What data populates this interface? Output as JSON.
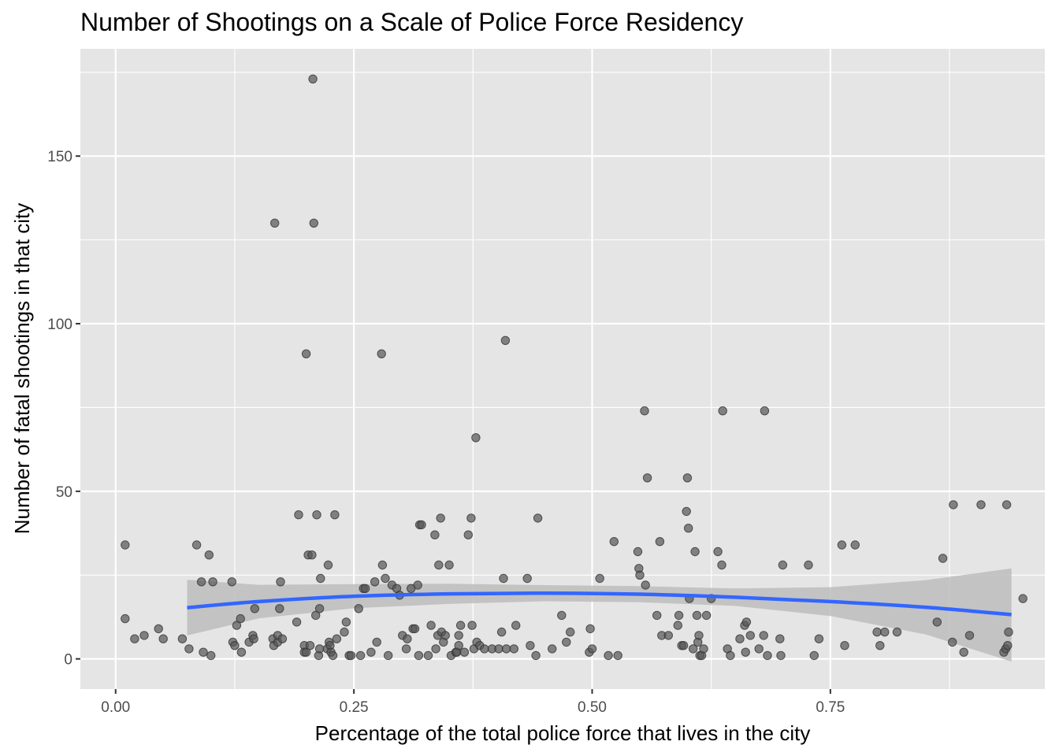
{
  "chart_data": {
    "type": "scatter",
    "title": "Number of Shootings on a Scale of Police Force Residency",
    "xlabel": "Percentage of the total police force that lives in the city",
    "ylabel": "Number of fatal shootings in that city",
    "xlim": [
      -0.037,
      0.975
    ],
    "ylim": [
      -9,
      182
    ],
    "x_ticks": [
      0,
      0.25,
      0.5,
      0.75
    ],
    "x_tick_labels": [
      "0.00",
      "0.25",
      "0.50",
      "0.75"
    ],
    "y_ticks": [
      0,
      50,
      100,
      150
    ],
    "y_tick_labels": [
      "0",
      "50",
      "100",
      "150"
    ],
    "grid": true,
    "colors": {
      "panel_background": "#E5E5E5",
      "grid_line": "#FFFFFF",
      "point": "#555555",
      "smooth_line": "#3366FF",
      "confidence_band": "#BDBDBD",
      "tick_label": "#4D4D4D",
      "tick_mark": "#333333"
    },
    "points": [
      [
        0.01,
        34
      ],
      [
        0.01,
        12
      ],
      [
        0.02,
        6
      ],
      [
        0.03,
        7
      ],
      [
        0.045,
        9
      ],
      [
        0.05,
        6
      ],
      [
        0.07,
        6
      ],
      [
        0.077,
        3
      ],
      [
        0.085,
        34
      ],
      [
        0.09,
        23
      ],
      [
        0.092,
        2
      ],
      [
        0.098,
        31
      ],
      [
        0.1,
        1
      ],
      [
        0.102,
        23
      ],
      [
        0.122,
        23
      ],
      [
        0.123,
        5
      ],
      [
        0.125,
        4
      ],
      [
        0.127,
        10
      ],
      [
        0.131,
        12
      ],
      [
        0.132,
        2
      ],
      [
        0.14,
        5
      ],
      [
        0.144,
        7
      ],
      [
        0.145,
        6
      ],
      [
        0.146,
        15
      ],
      [
        0.165,
        6
      ],
      [
        0.166,
        4
      ],
      [
        0.167,
        130
      ],
      [
        0.17,
        5
      ],
      [
        0.17,
        7
      ],
      [
        0.172,
        15
      ],
      [
        0.173,
        23
      ],
      [
        0.175,
        6
      ],
      [
        0.19,
        11
      ],
      [
        0.192,
        43
      ],
      [
        0.198,
        4
      ],
      [
        0.198,
        2
      ],
      [
        0.2,
        2
      ],
      [
        0.2,
        91
      ],
      [
        0.202,
        31
      ],
      [
        0.204,
        4
      ],
      [
        0.206,
        31
      ],
      [
        0.207,
        173
      ],
      [
        0.208,
        130
      ],
      [
        0.21,
        13
      ],
      [
        0.211,
        43
      ],
      [
        0.213,
        1
      ],
      [
        0.214,
        3
      ],
      [
        0.214,
        15
      ],
      [
        0.215,
        24
      ],
      [
        0.222,
        3
      ],
      [
        0.223,
        28
      ],
      [
        0.224,
        5
      ],
      [
        0.225,
        4
      ],
      [
        0.226,
        2
      ],
      [
        0.228,
        1
      ],
      [
        0.23,
        43
      ],
      [
        0.232,
        6
      ],
      [
        0.24,
        8
      ],
      [
        0.242,
        11
      ],
      [
        0.245,
        1
      ],
      [
        0.247,
        1
      ],
      [
        0.255,
        15
      ],
      [
        0.257,
        1
      ],
      [
        0.26,
        21
      ],
      [
        0.262,
        21
      ],
      [
        0.268,
        2
      ],
      [
        0.272,
        23
      ],
      [
        0.274,
        5
      ],
      [
        0.279,
        91
      ],
      [
        0.28,
        28
      ],
      [
        0.283,
        24
      ],
      [
        0.286,
        1
      ],
      [
        0.29,
        22
      ],
      [
        0.295,
        21
      ],
      [
        0.298,
        19
      ],
      [
        0.301,
        7
      ],
      [
        0.305,
        3
      ],
      [
        0.306,
        6
      ],
      [
        0.31,
        21
      ],
      [
        0.312,
        9
      ],
      [
        0.314,
        9
      ],
      [
        0.317,
        22
      ],
      [
        0.318,
        1
      ],
      [
        0.319,
        40
      ],
      [
        0.321,
        40
      ],
      [
        0.328,
        1
      ],
      [
        0.331,
        10
      ],
      [
        0.335,
        37
      ],
      [
        0.336,
        3
      ],
      [
        0.338,
        7
      ],
      [
        0.339,
        28
      ],
      [
        0.341,
        42
      ],
      [
        0.342,
        8
      ],
      [
        0.344,
        5
      ],
      [
        0.346,
        7
      ],
      [
        0.35,
        28
      ],
      [
        0.352,
        1
      ],
      [
        0.357,
        2
      ],
      [
        0.358,
        2
      ],
      [
        0.36,
        4
      ],
      [
        0.36,
        7
      ],
      [
        0.362,
        10
      ],
      [
        0.366,
        2
      ],
      [
        0.37,
        37
      ],
      [
        0.373,
        42
      ],
      [
        0.374,
        10
      ],
      [
        0.376,
        3
      ],
      [
        0.378,
        66
      ],
      [
        0.379,
        5
      ],
      [
        0.382,
        4
      ],
      [
        0.387,
        3
      ],
      [
        0.395,
        3
      ],
      [
        0.402,
        3
      ],
      [
        0.405,
        8
      ],
      [
        0.407,
        24
      ],
      [
        0.409,
        95
      ],
      [
        0.41,
        3
      ],
      [
        0.418,
        3
      ],
      [
        0.42,
        10
      ],
      [
        0.432,
        24
      ],
      [
        0.435,
        4
      ],
      [
        0.441,
        1
      ],
      [
        0.443,
        42
      ],
      [
        0.458,
        3
      ],
      [
        0.468,
        13
      ],
      [
        0.473,
        5
      ],
      [
        0.477,
        8
      ],
      [
        0.497,
        2
      ],
      [
        0.498,
        9
      ],
      [
        0.5,
        3
      ],
      [
        0.508,
        24
      ],
      [
        0.517,
        1
      ],
      [
        0.523,
        35
      ],
      [
        0.527,
        1
      ],
      [
        0.548,
        32
      ],
      [
        0.549,
        27
      ],
      [
        0.55,
        25
      ],
      [
        0.555,
        74
      ],
      [
        0.556,
        22
      ],
      [
        0.558,
        54
      ],
      [
        0.568,
        13
      ],
      [
        0.571,
        35
      ],
      [
        0.573,
        7
      ],
      [
        0.58,
        7
      ],
      [
        0.59,
        10
      ],
      [
        0.591,
        13
      ],
      [
        0.594,
        4
      ],
      [
        0.596,
        4
      ],
      [
        0.599,
        44
      ],
      [
        0.6,
        54
      ],
      [
        0.601,
        39
      ],
      [
        0.602,
        18
      ],
      [
        0.606,
        3
      ],
      [
        0.608,
        32
      ],
      [
        0.61,
        13
      ],
      [
        0.611,
        5
      ],
      [
        0.612,
        7
      ],
      [
        0.613,
        1
      ],
      [
        0.615,
        1
      ],
      [
        0.617,
        3
      ],
      [
        0.62,
        13
      ],
      [
        0.625,
        18
      ],
      [
        0.632,
        32
      ],
      [
        0.636,
        28
      ],
      [
        0.637,
        74
      ],
      [
        0.642,
        3
      ],
      [
        0.645,
        1
      ],
      [
        0.655,
        6
      ],
      [
        0.66,
        10
      ],
      [
        0.661,
        2
      ],
      [
        0.662,
        11
      ],
      [
        0.666,
        7
      ],
      [
        0.675,
        3
      ],
      [
        0.68,
        7
      ],
      [
        0.681,
        74
      ],
      [
        0.684,
        1
      ],
      [
        0.697,
        6
      ],
      [
        0.698,
        1
      ],
      [
        0.7,
        28
      ],
      [
        0.727,
        28
      ],
      [
        0.733,
        1
      ],
      [
        0.738,
        6
      ],
      [
        0.762,
        34
      ],
      [
        0.765,
        4
      ],
      [
        0.776,
        34
      ],
      [
        0.799,
        8
      ],
      [
        0.802,
        4
      ],
      [
        0.807,
        8
      ],
      [
        0.82,
        8
      ],
      [
        0.862,
        11
      ],
      [
        0.868,
        30
      ],
      [
        0.878,
        5
      ],
      [
        0.879,
        46
      ],
      [
        0.89,
        2
      ],
      [
        0.896,
        7
      ],
      [
        0.908,
        46
      ],
      [
        0.932,
        2
      ],
      [
        0.934,
        3
      ],
      [
        0.935,
        46
      ],
      [
        0.936,
        4
      ],
      [
        0.937,
        8
      ],
      [
        0.952,
        18
      ]
    ],
    "smooth_line": [
      [
        0.075,
        15.3
      ],
      [
        0.15,
        17.1
      ],
      [
        0.25,
        18.7
      ],
      [
        0.35,
        19.4
      ],
      [
        0.45,
        19.6
      ],
      [
        0.55,
        19.3
      ],
      [
        0.65,
        18.4
      ],
      [
        0.75,
        17.1
      ],
      [
        0.85,
        15.4
      ],
      [
        0.94,
        13.2
      ]
    ],
    "confidence_band": {
      "x": [
        0.075,
        0.15,
        0.25,
        0.35,
        0.45,
        0.55,
        0.65,
        0.75,
        0.85,
        0.94
      ],
      "upper": [
        23.6,
        22.1,
        22.3,
        22.4,
        22.0,
        21.7,
        21.0,
        21.4,
        23.5,
        27.0
      ],
      "lower": [
        7.0,
        12.1,
        15.1,
        16.4,
        17.2,
        16.9,
        15.8,
        12.8,
        7.3,
        -0.8
      ]
    }
  }
}
